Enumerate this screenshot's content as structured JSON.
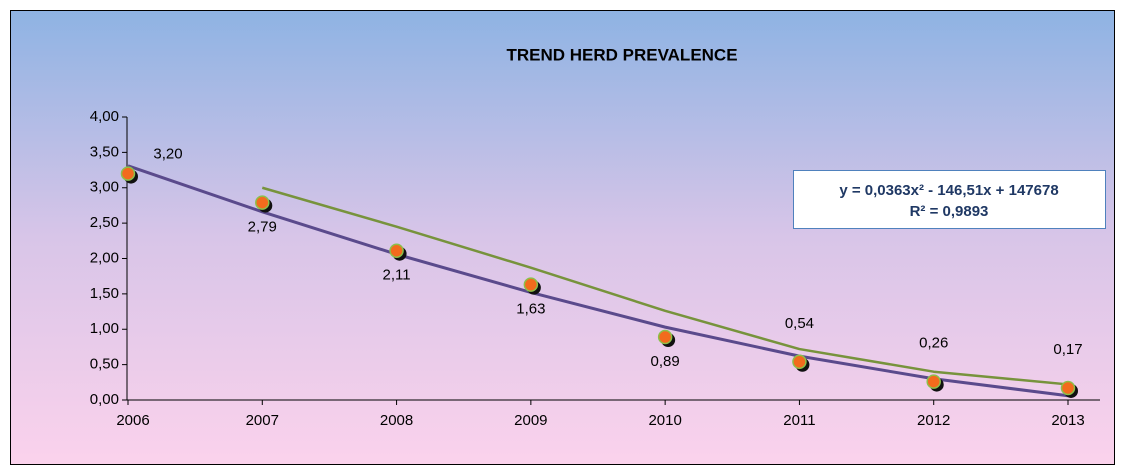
{
  "chart_data": {
    "type": "line",
    "title": "TREND HERD PREVALENCE",
    "categories": [
      "2006",
      "2007",
      "2008",
      "2009",
      "2010",
      "2011",
      "2012",
      "2013"
    ],
    "series": [
      {
        "color": "#f26b1d",
        "values": [
          3.2,
          2.79,
          2.11,
          1.63,
          0.89,
          0.54,
          0.26,
          0.17
        ],
        "value_labels": [
          "3,20",
          "2,79",
          "2,11",
          "1,63",
          "0,89",
          "0,54",
          "0,26",
          "0,17"
        ]
      },
      {
        "color": "#5a4a8c",
        "values": [
          3.31,
          2.66,
          2.06,
          1.52,
          1.03,
          0.62,
          0.3,
          0.06
        ]
      },
      {
        "color": "#77933c",
        "values": [
          null,
          3.0,
          2.45,
          1.87,
          1.26,
          0.72,
          0.4,
          0.22
        ]
      }
    ],
    "ylim": [
      0,
      4
    ],
    "yticks": [
      {
        "value": 0,
        "label": "0,00"
      },
      {
        "value": 0.5,
        "label": "0,50"
      },
      {
        "value": 1,
        "label": "1,00"
      },
      {
        "value": 1.5,
        "label": "1,50"
      },
      {
        "value": 2,
        "label": "2,00"
      },
      {
        "value": 2.5,
        "label": "2,50"
      },
      {
        "value": 3,
        "label": "3,00"
      },
      {
        "value": 3.5,
        "label": "3,50"
      },
      {
        "value": 4,
        "label": "4,00"
      }
    ],
    "annotations": [
      "y = 0,0363x² - 146,51x + 147678",
      "R² = 0,9893"
    ]
  }
}
